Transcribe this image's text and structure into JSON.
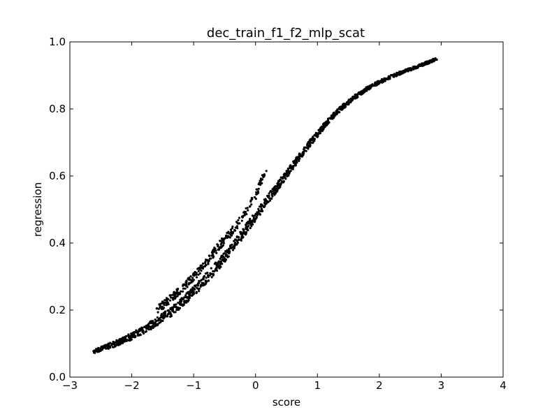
{
  "chart_data": {
    "type": "scatter",
    "title": "dec_train_f1_f2_mlp_scat",
    "xlabel": "score",
    "ylabel": "regression",
    "xlim": [
      -3,
      4
    ],
    "ylim": [
      0.0,
      1.0
    ],
    "x_ticks": [
      "−3",
      "−2",
      "−1",
      "0",
      "1",
      "2",
      "3",
      "4"
    ],
    "y_ticks": [
      "0.0",
      "0.2",
      "0.4",
      "0.6",
      "0.8",
      "1.0"
    ],
    "grid": false,
    "marker_color": "#000000",
    "main_band": {
      "x": [
        -2.62,
        -2.4,
        -2.2,
        -2.0,
        -1.8,
        -1.6,
        -1.4,
        -1.2,
        -1.0,
        -0.8,
        -0.6,
        -0.4,
        -0.2,
        0.0,
        0.2,
        0.4,
        0.6,
        0.8,
        1.0,
        1.2,
        1.4,
        1.6,
        1.8,
        2.0,
        2.2,
        2.4,
        2.6,
        2.8,
        2.93
      ],
      "y": [
        0.078,
        0.09,
        0.105,
        0.122,
        0.142,
        0.165,
        0.19,
        0.22,
        0.255,
        0.295,
        0.335,
        0.38,
        0.43,
        0.48,
        0.53,
        0.58,
        0.63,
        0.68,
        0.725,
        0.77,
        0.805,
        0.835,
        0.86,
        0.88,
        0.897,
        0.912,
        0.925,
        0.94,
        0.95
      ]
    },
    "upper_branch": {
      "x": [
        -1.6,
        -1.4,
        -1.2,
        -1.0,
        -0.8,
        -0.6,
        -0.4,
        -0.2,
        0.0,
        0.1,
        0.18
      ],
      "y": [
        0.2,
        0.23,
        0.26,
        0.3,
        0.34,
        0.39,
        0.43,
        0.48,
        0.54,
        0.59,
        0.625
      ]
    }
  }
}
